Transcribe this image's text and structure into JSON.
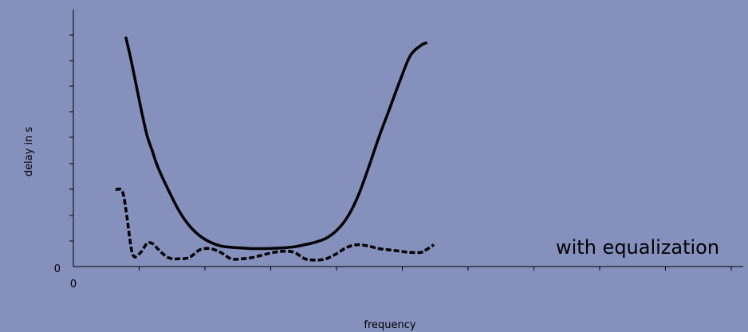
{
  "chart_data": {
    "type": "line",
    "xlabel": "frequency",
    "ylabel": "delay in s",
    "x_tick_label": "0",
    "y_tick_label": "0",
    "xlim": [
      0,
      100
    ],
    "ylim": [
      0,
      100
    ],
    "grid": false,
    "annotation": "with equalization",
    "series": [
      {
        "style": "solid",
        "x": [
          10,
          11,
          12,
          13,
          14,
          15,
          16,
          18,
          20,
          22,
          24,
          26,
          28,
          30,
          32,
          34,
          36,
          38,
          40,
          42,
          44,
          46,
          48,
          50,
          52,
          54,
          56,
          58,
          60,
          62,
          64,
          66,
          67
        ],
        "y": [
          89,
          80,
          70,
          60,
          51,
          45,
          39,
          30,
          22,
          16,
          12,
          9.5,
          8,
          7.5,
          7.2,
          7,
          7,
          7.1,
          7.3,
          7.7,
          8.5,
          9.5,
          11,
          14,
          19,
          27,
          38,
          50,
          61,
          72,
          82,
          86,
          87
        ]
      },
      {
        "style": "dashed",
        "x": [
          8,
          9,
          9.5,
          10,
          11,
          11.5,
          12,
          13,
          14,
          15,
          16,
          17,
          18,
          19,
          20,
          22,
          24,
          26,
          28,
          30,
          32,
          34,
          36,
          38,
          40,
          42,
          44,
          46,
          48,
          50,
          52,
          54,
          56,
          58,
          60,
          62,
          64,
          66,
          67,
          68.5
        ],
        "y": [
          30,
          30,
          28,
          22,
          7,
          4,
          4,
          6,
          9,
          9,
          7,
          5,
          3.5,
          3,
          3,
          3.5,
          6.5,
          7,
          5.5,
          3,
          3,
          3.5,
          4.5,
          5.5,
          6,
          5.5,
          3,
          2.5,
          3,
          5,
          7.5,
          8.5,
          8,
          7,
          6.5,
          6,
          5.5,
          5.5,
          6.5,
          8.5
        ]
      }
    ]
  }
}
